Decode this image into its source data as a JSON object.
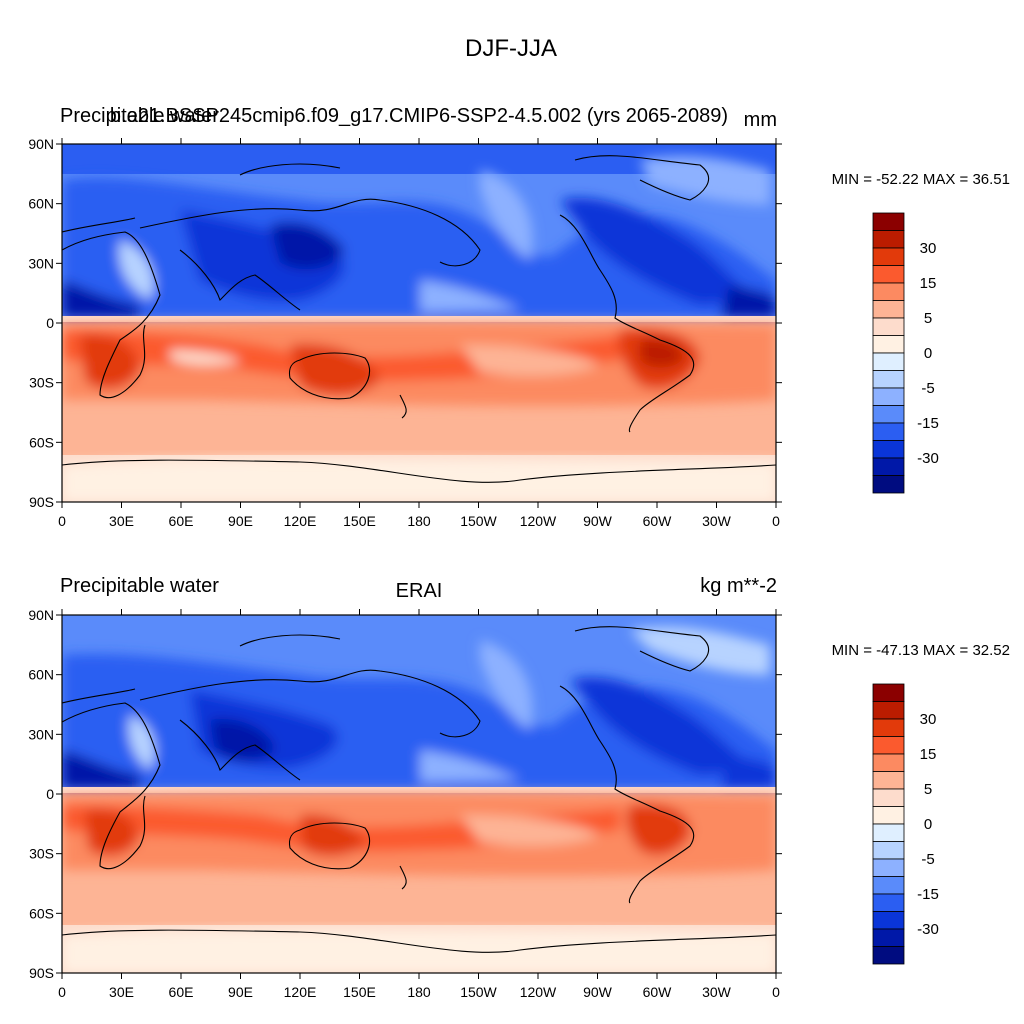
{
  "figure_title": "DJF-JJA",
  "legend_levels": [
    "30",
    "15",
    "5",
    "0",
    "-5",
    "-15",
    "-30"
  ],
  "legend_colors": [
    "#8b0000",
    "#bb1c00",
    "#e23a0b",
    "#fb5a2e",
    "#fc8a61",
    "#fdb495",
    "#fddccc",
    "#fff1e3",
    "#dfefff",
    "#b7d3ff",
    "#8db1ff",
    "#5a8bfa",
    "#2b5ef2",
    "#0a35d8",
    "#0018a8",
    "#000c80"
  ],
  "x_ticks": [
    "0",
    "30E",
    "60E",
    "90E",
    "120E",
    "150E",
    "180",
    "150W",
    "120W",
    "90W",
    "60W",
    "30W",
    "0"
  ],
  "y_ticks": [
    "90N",
    "60N",
    "30N",
    "0",
    "30S",
    "60S",
    "90S"
  ],
  "panels": [
    {
      "left_title": "Precipitable water",
      "center_title": "b.e21.BSSP245cmip6.f09_g17.CMIP6-SSP2-4.5.002 (yrs 2065-2089)",
      "right_title": "mm",
      "stats": "MIN = -52.22 MAX =  36.51"
    },
    {
      "left_title": "Precipitable water",
      "center_title": "ERAI",
      "right_title": "kg m**-2",
      "stats": "MIN = -47.13 MAX =  32.52"
    }
  ],
  "chart_data": {
    "type": "heatmap",
    "title": "DJF-JJA",
    "variable": "Precipitable water",
    "xlim": [
      0,
      360
    ],
    "ylim": [
      -90,
      90
    ],
    "contour_levels": [
      -35,
      -30,
      -25,
      -20,
      -15,
      -10,
      -5,
      0,
      5,
      10,
      15,
      20,
      25,
      30,
      35
    ],
    "legend_labels": [
      30,
      15,
      5,
      0,
      -5,
      -15,
      -30
    ],
    "fields": [
      {
        "name": "b.e21.BSSP245cmip6.f09_g17.CMIP6-SSP2-4.5.002 (yrs 2065-2089)",
        "units": "mm",
        "min": -52.22,
        "max": 36.51
      },
      {
        "name": "ERAI",
        "units": "kg m**-2",
        "min": -47.13,
        "max": 32.52
      }
    ]
  }
}
